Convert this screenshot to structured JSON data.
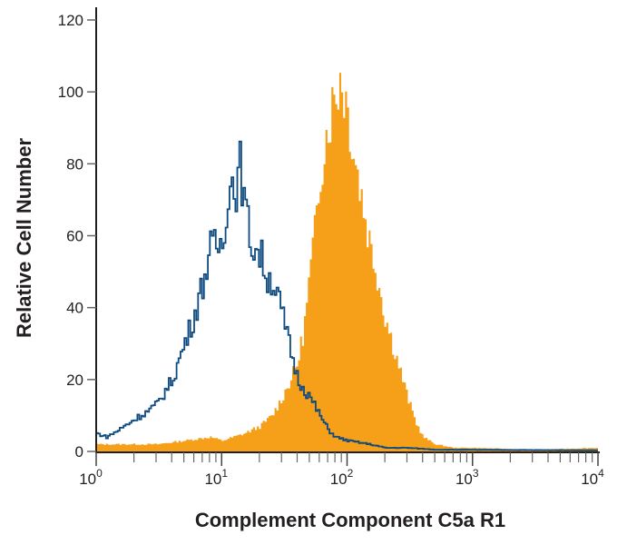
{
  "chart_data": {
    "type": "area",
    "title": "",
    "xlabel": "Complement Component C5a R1",
    "ylabel": "Relative Cell Number",
    "xscale": "log",
    "xlim": [
      1,
      10000
    ],
    "ylim": [
      0,
      120
    ],
    "xticks": [
      {
        "base": "10",
        "exp": "0"
      },
      {
        "base": "10",
        "exp": "1"
      },
      {
        "base": "10",
        "exp": "2"
      },
      {
        "base": "10",
        "exp": "3"
      },
      {
        "base": "10",
        "exp": "4"
      }
    ],
    "yticks": [
      "0",
      "20",
      "40",
      "60",
      "80",
      "100",
      "120"
    ],
    "grid": false,
    "series": [
      {
        "style": "filled",
        "color": "#f6a01a",
        "points": [
          [
            1,
            2
          ],
          [
            2,
            2
          ],
          [
            3,
            2
          ],
          [
            5,
            3
          ],
          [
            8,
            4
          ],
          [
            10,
            3
          ],
          [
            15,
            5
          ],
          [
            20,
            7
          ],
          [
            25,
            10
          ],
          [
            30,
            15
          ],
          [
            35,
            20
          ],
          [
            40,
            25
          ],
          [
            45,
            35
          ],
          [
            50,
            50
          ],
          [
            55,
            62
          ],
          [
            60,
            78
          ],
          [
            70,
            92
          ],
          [
            80,
            100
          ],
          [
            88,
            105
          ],
          [
            100,
            95
          ],
          [
            110,
            85
          ],
          [
            130,
            70
          ],
          [
            150,
            58
          ],
          [
            170,
            50
          ],
          [
            200,
            37
          ],
          [
            250,
            25
          ],
          [
            300,
            15
          ],
          [
            350,
            8
          ],
          [
            400,
            4
          ],
          [
            500,
            2
          ],
          [
            700,
            1
          ],
          [
            1000,
            1
          ],
          [
            3000,
            0.5
          ],
          [
            10000,
            1
          ]
        ]
      },
      {
        "style": "outline",
        "color": "#0d4a80",
        "points": [
          [
            1,
            5
          ],
          [
            1.2,
            4
          ],
          [
            1.5,
            6
          ],
          [
            2,
            9
          ],
          [
            2.5,
            11
          ],
          [
            3,
            13
          ],
          [
            4,
            20
          ],
          [
            5,
            30
          ],
          [
            6,
            38
          ],
          [
            7,
            47
          ],
          [
            8,
            56
          ],
          [
            10,
            58
          ],
          [
            11,
            72
          ],
          [
            12,
            75
          ],
          [
            13,
            74
          ],
          [
            14,
            80
          ],
          [
            15,
            68
          ],
          [
            17,
            58
          ],
          [
            20,
            55
          ],
          [
            23,
            48
          ],
          [
            25,
            48
          ],
          [
            28,
            42
          ],
          [
            30,
            38
          ],
          [
            35,
            28
          ],
          [
            40,
            20
          ],
          [
            50,
            15
          ],
          [
            60,
            10
          ],
          [
            70,
            6
          ],
          [
            80,
            4
          ],
          [
            100,
            3
          ],
          [
            150,
            2
          ],
          [
            200,
            1
          ],
          [
            300,
            1
          ],
          [
            500,
            0.5
          ],
          [
            10000,
            0.3
          ]
        ]
      }
    ]
  }
}
